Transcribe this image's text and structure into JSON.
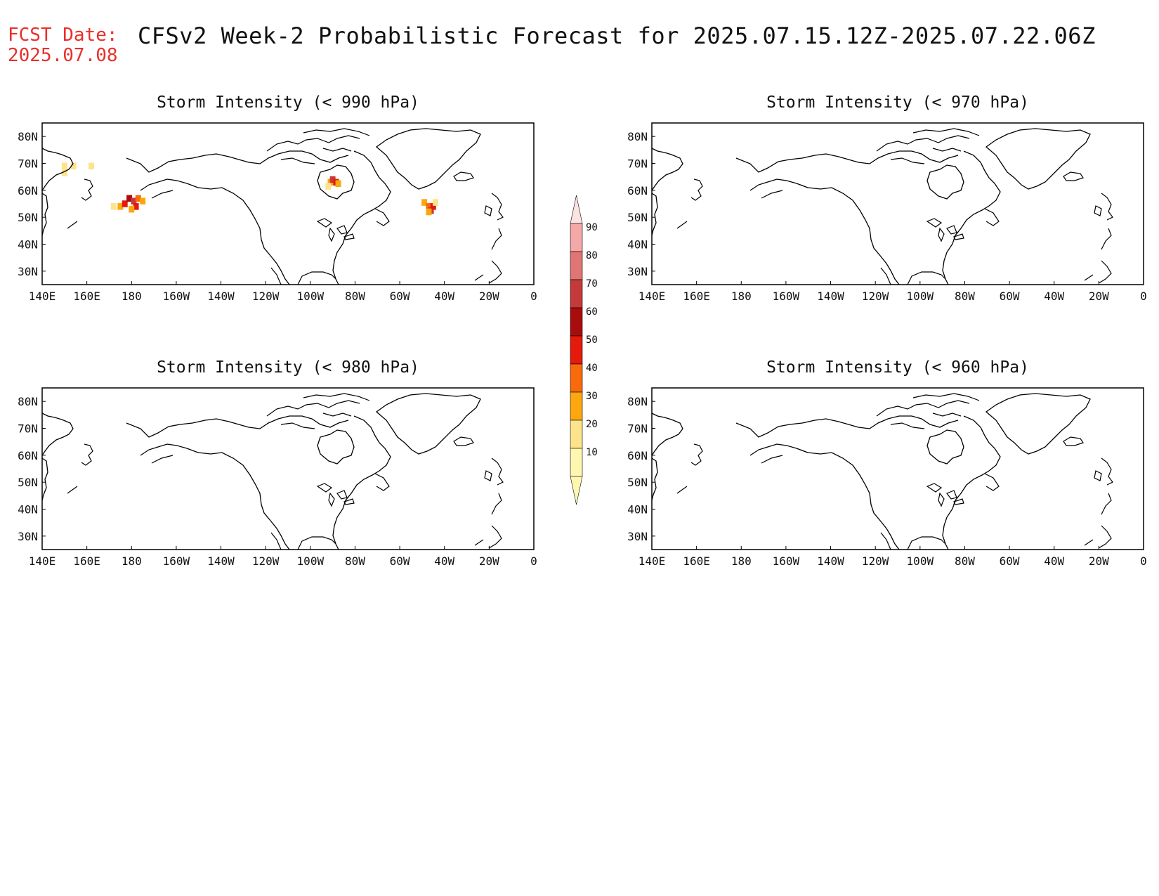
{
  "header": {
    "fcst_label": "FCST Date:",
    "fcst_date": "2025.07.08",
    "title": "CFSv2 Week-2 Probabilistic Forecast for 2025.07.15.12Z-2025.07.22.06Z"
  },
  "axes": {
    "lon_ticks": [
      "140E",
      "160E",
      "180",
      "160W",
      "140W",
      "120W",
      "100W",
      "80W",
      "60W",
      "40W",
      "20W",
      "0"
    ],
    "lat_ticks": [
      "80N",
      "70N",
      "60N",
      "50N",
      "40N",
      "30N"
    ],
    "lon_range": [
      140,
      360
    ],
    "lat_range": [
      25,
      85
    ]
  },
  "panels": [
    {
      "id": "p990",
      "title": "Storm Intensity (< 990 hPa)"
    },
    {
      "id": "p970",
      "title": "Storm Intensity (< 970 hPa)"
    },
    {
      "id": "p980",
      "title": "Storm Intensity (< 980 hPa)"
    },
    {
      "id": "p960",
      "title": "Storm Intensity (< 960 hPa)"
    }
  ],
  "colorbar": {
    "levels": [
      "10",
      "20",
      "30",
      "40",
      "50",
      "60",
      "70",
      "80",
      "90"
    ],
    "colors": [
      "#fff7b0",
      "#fde38a",
      "#fca70f",
      "#f86a0c",
      "#e41a0c",
      "#a80c0c",
      "#c43a3a",
      "#e07575",
      "#f5a8a8",
      "#fde2e2"
    ]
  },
  "chart_data": {
    "type": "heatmap",
    "units": "probability (%)",
    "panels": [
      {
        "id": "p990",
        "cells": [
          {
            "lon": 150,
            "lat": 69,
            "p": 15
          },
          {
            "lon": 154,
            "lat": 69,
            "p": 15
          },
          {
            "lon": 150,
            "lat": 66.5,
            "p": 12
          },
          {
            "lon": 162,
            "lat": 69,
            "p": 12
          },
          {
            "lon": 172,
            "lat": 54,
            "p": 15
          },
          {
            "lon": 175,
            "lat": 54,
            "p": 25
          },
          {
            "lon": 177,
            "lat": 55,
            "p": 45
          },
          {
            "lon": 179,
            "lat": 57,
            "p": 55
          },
          {
            "lon": 181,
            "lat": 56,
            "p": 65
          },
          {
            "lon": 182,
            "lat": 54,
            "p": 40
          },
          {
            "lon": 183,
            "lat": 57,
            "p": 35
          },
          {
            "lon": 180,
            "lat": 53,
            "p": 25
          },
          {
            "lon": 185,
            "lat": 56,
            "p": 20
          },
          {
            "lon": 269,
            "lat": 63,
            "p": 25
          },
          {
            "lon": 270,
            "lat": 64,
            "p": 65
          },
          {
            "lon": 271.5,
            "lat": 63,
            "p": 45
          },
          {
            "lon": 272.5,
            "lat": 62.5,
            "p": 25
          },
          {
            "lon": 268,
            "lat": 61.5,
            "p": 15
          },
          {
            "lon": 311,
            "lat": 55.5,
            "p": 20
          },
          {
            "lon": 313,
            "lat": 54,
            "p": 30
          },
          {
            "lon": 314,
            "lat": 52.5,
            "p": 60
          },
          {
            "lon": 315,
            "lat": 54,
            "p": 45
          },
          {
            "lon": 313,
            "lat": 52,
            "p": 25
          },
          {
            "lon": 316,
            "lat": 55.5,
            "p": 15
          }
        ]
      },
      {
        "id": "p970",
        "cells": []
      },
      {
        "id": "p980",
        "cells": []
      },
      {
        "id": "p960",
        "cells": []
      }
    ]
  }
}
